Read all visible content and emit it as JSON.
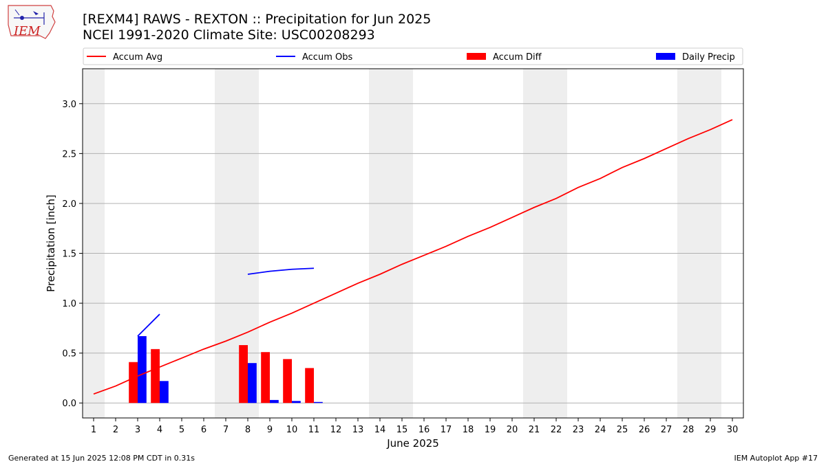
{
  "header": {
    "title_line1": "[REXM4] RAWS - REXTON :: Precipitation for Jun 2025",
    "title_line2": "NCEI 1991-2020 Climate Site: USC00208293"
  },
  "logo": {
    "text": "IEM",
    "icon": "iem-iowa-logo"
  },
  "footer": {
    "left": "Generated at 15 Jun 2025 12:08 PM CDT in 0.31s",
    "right": "IEM Autoplot App #17"
  },
  "chart_data": {
    "type": "bar",
    "xlabel": "June 2025",
    "ylabel": "Precipitation [inch]",
    "xlim": [
      0.5,
      30.5
    ],
    "ylim": [
      -0.15,
      3.35
    ],
    "yticks": [
      0.0,
      0.5,
      1.0,
      1.5,
      2.0,
      2.5,
      3.0
    ],
    "ytick_labels": [
      "0.0",
      "0.5",
      "1.0",
      "1.5",
      "2.0",
      "2.5",
      "3.0"
    ],
    "xticks": [
      1,
      2,
      3,
      4,
      5,
      6,
      7,
      8,
      9,
      10,
      11,
      12,
      13,
      14,
      15,
      16,
      17,
      18,
      19,
      20,
      21,
      22,
      23,
      24,
      25,
      26,
      27,
      28,
      29,
      30
    ],
    "xtick_labels": [
      "1",
      "2",
      "3",
      "4",
      "5",
      "6",
      "7",
      "8",
      "9",
      "10",
      "11",
      "12",
      "13",
      "14",
      "15",
      "16",
      "17",
      "18",
      "19",
      "20",
      "21",
      "22",
      "23",
      "24",
      "25",
      "26",
      "27",
      "28",
      "29",
      "30"
    ],
    "grid": "horizontal",
    "legend_position": "top",
    "weekend_shading": [
      [
        0.5,
        1.5
      ],
      [
        6.5,
        8.5
      ],
      [
        13.5,
        15.5
      ],
      [
        20.5,
        22.5
      ],
      [
        27.5,
        29.5
      ]
    ],
    "series": [
      {
        "name": "Accum Avg",
        "kind": "line",
        "color": "#ff0000",
        "x": [
          1,
          2,
          3,
          4,
          5,
          6,
          7,
          8,
          9,
          10,
          11,
          12,
          13,
          14,
          15,
          16,
          17,
          18,
          19,
          20,
          21,
          22,
          23,
          24,
          25,
          26,
          27,
          28,
          29,
          30
        ],
        "values": [
          0.09,
          0.17,
          0.27,
          0.36,
          0.45,
          0.54,
          0.62,
          0.71,
          0.81,
          0.9,
          1.0,
          1.1,
          1.2,
          1.29,
          1.39,
          1.48,
          1.57,
          1.67,
          1.76,
          1.86,
          1.96,
          2.05,
          2.16,
          2.25,
          2.36,
          2.45,
          2.55,
          2.65,
          2.74,
          2.84
        ]
      },
      {
        "name": "Accum Obs",
        "kind": "line",
        "color": "#0000ff",
        "segments": [
          {
            "x": [
              3,
              4
            ],
            "values": [
              0.67,
              0.89
            ]
          },
          {
            "x": [
              8,
              9,
              10,
              11
            ],
            "values": [
              1.29,
              1.32,
              1.34,
              1.35
            ]
          }
        ]
      },
      {
        "name": "Accum Diff",
        "kind": "bar",
        "color": "#ff0000",
        "x": [
          3,
          4,
          8,
          9,
          10,
          11
        ],
        "values": [
          0.41,
          0.54,
          0.58,
          0.51,
          0.44,
          0.35
        ]
      },
      {
        "name": "Daily Precip",
        "kind": "bar",
        "color": "#0000ff",
        "x": [
          3,
          4,
          8,
          9,
          10,
          11
        ],
        "values": [
          0.67,
          0.22,
          0.4,
          0.03,
          0.02,
          0.01
        ]
      }
    ]
  }
}
